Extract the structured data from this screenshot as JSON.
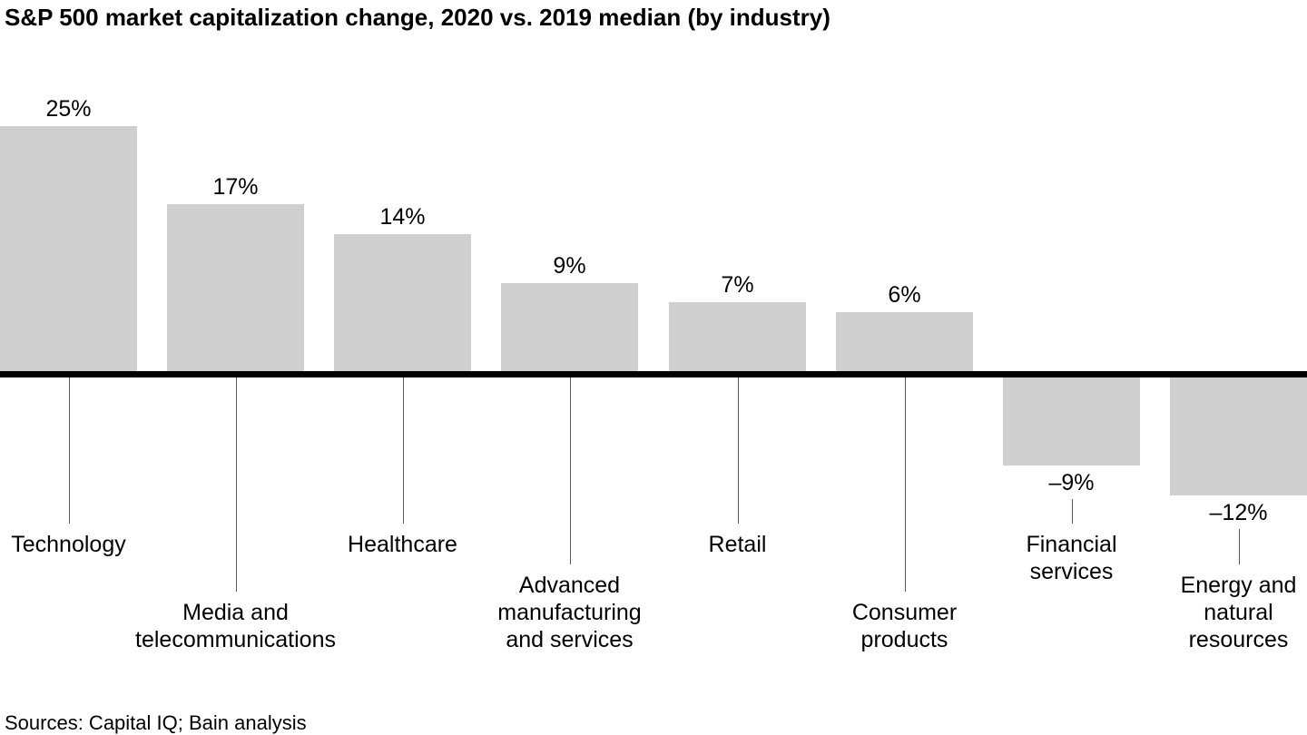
{
  "chart_data": {
    "type": "bar",
    "title": "S&P 500 market capitalization change, 2020 vs. 2019 median (by industry)",
    "categories": [
      "Technology",
      "Media and telecommunications",
      "Healthcare",
      "Advanced manufacturing and services",
      "Retail",
      "Consumer products",
      "Financial services",
      "Energy and natural resources"
    ],
    "values": [
      25,
      17,
      14,
      9,
      7,
      6,
      -9,
      -12
    ],
    "value_labels": [
      "25%",
      "17%",
      "14%",
      "9%",
      "7%",
      "6%",
      "–9%",
      "–12%"
    ],
    "category_label_lines": [
      [
        "Technology"
      ],
      [
        "Media and",
        "telecommunications"
      ],
      [
        "Healthcare"
      ],
      [
        "Advanced",
        "manufacturing",
        "and services"
      ],
      [
        "Retail"
      ],
      [
        "Consumer",
        "products"
      ],
      [
        "Financial",
        "services"
      ],
      [
        "Energy and",
        "natural",
        "resources"
      ]
    ],
    "source": "Sources: Capital IQ; Bain analysis",
    "bar_color": "#cfcfcf",
    "baseline_color": "#000000",
    "leader_line_color": "#58595b",
    "text_color": "#000000",
    "axis": {
      "y_unit": "%",
      "y_axis_shown": false,
      "gridlines": false,
      "zero_baseline_shown": true
    },
    "legend_position": "none"
  }
}
